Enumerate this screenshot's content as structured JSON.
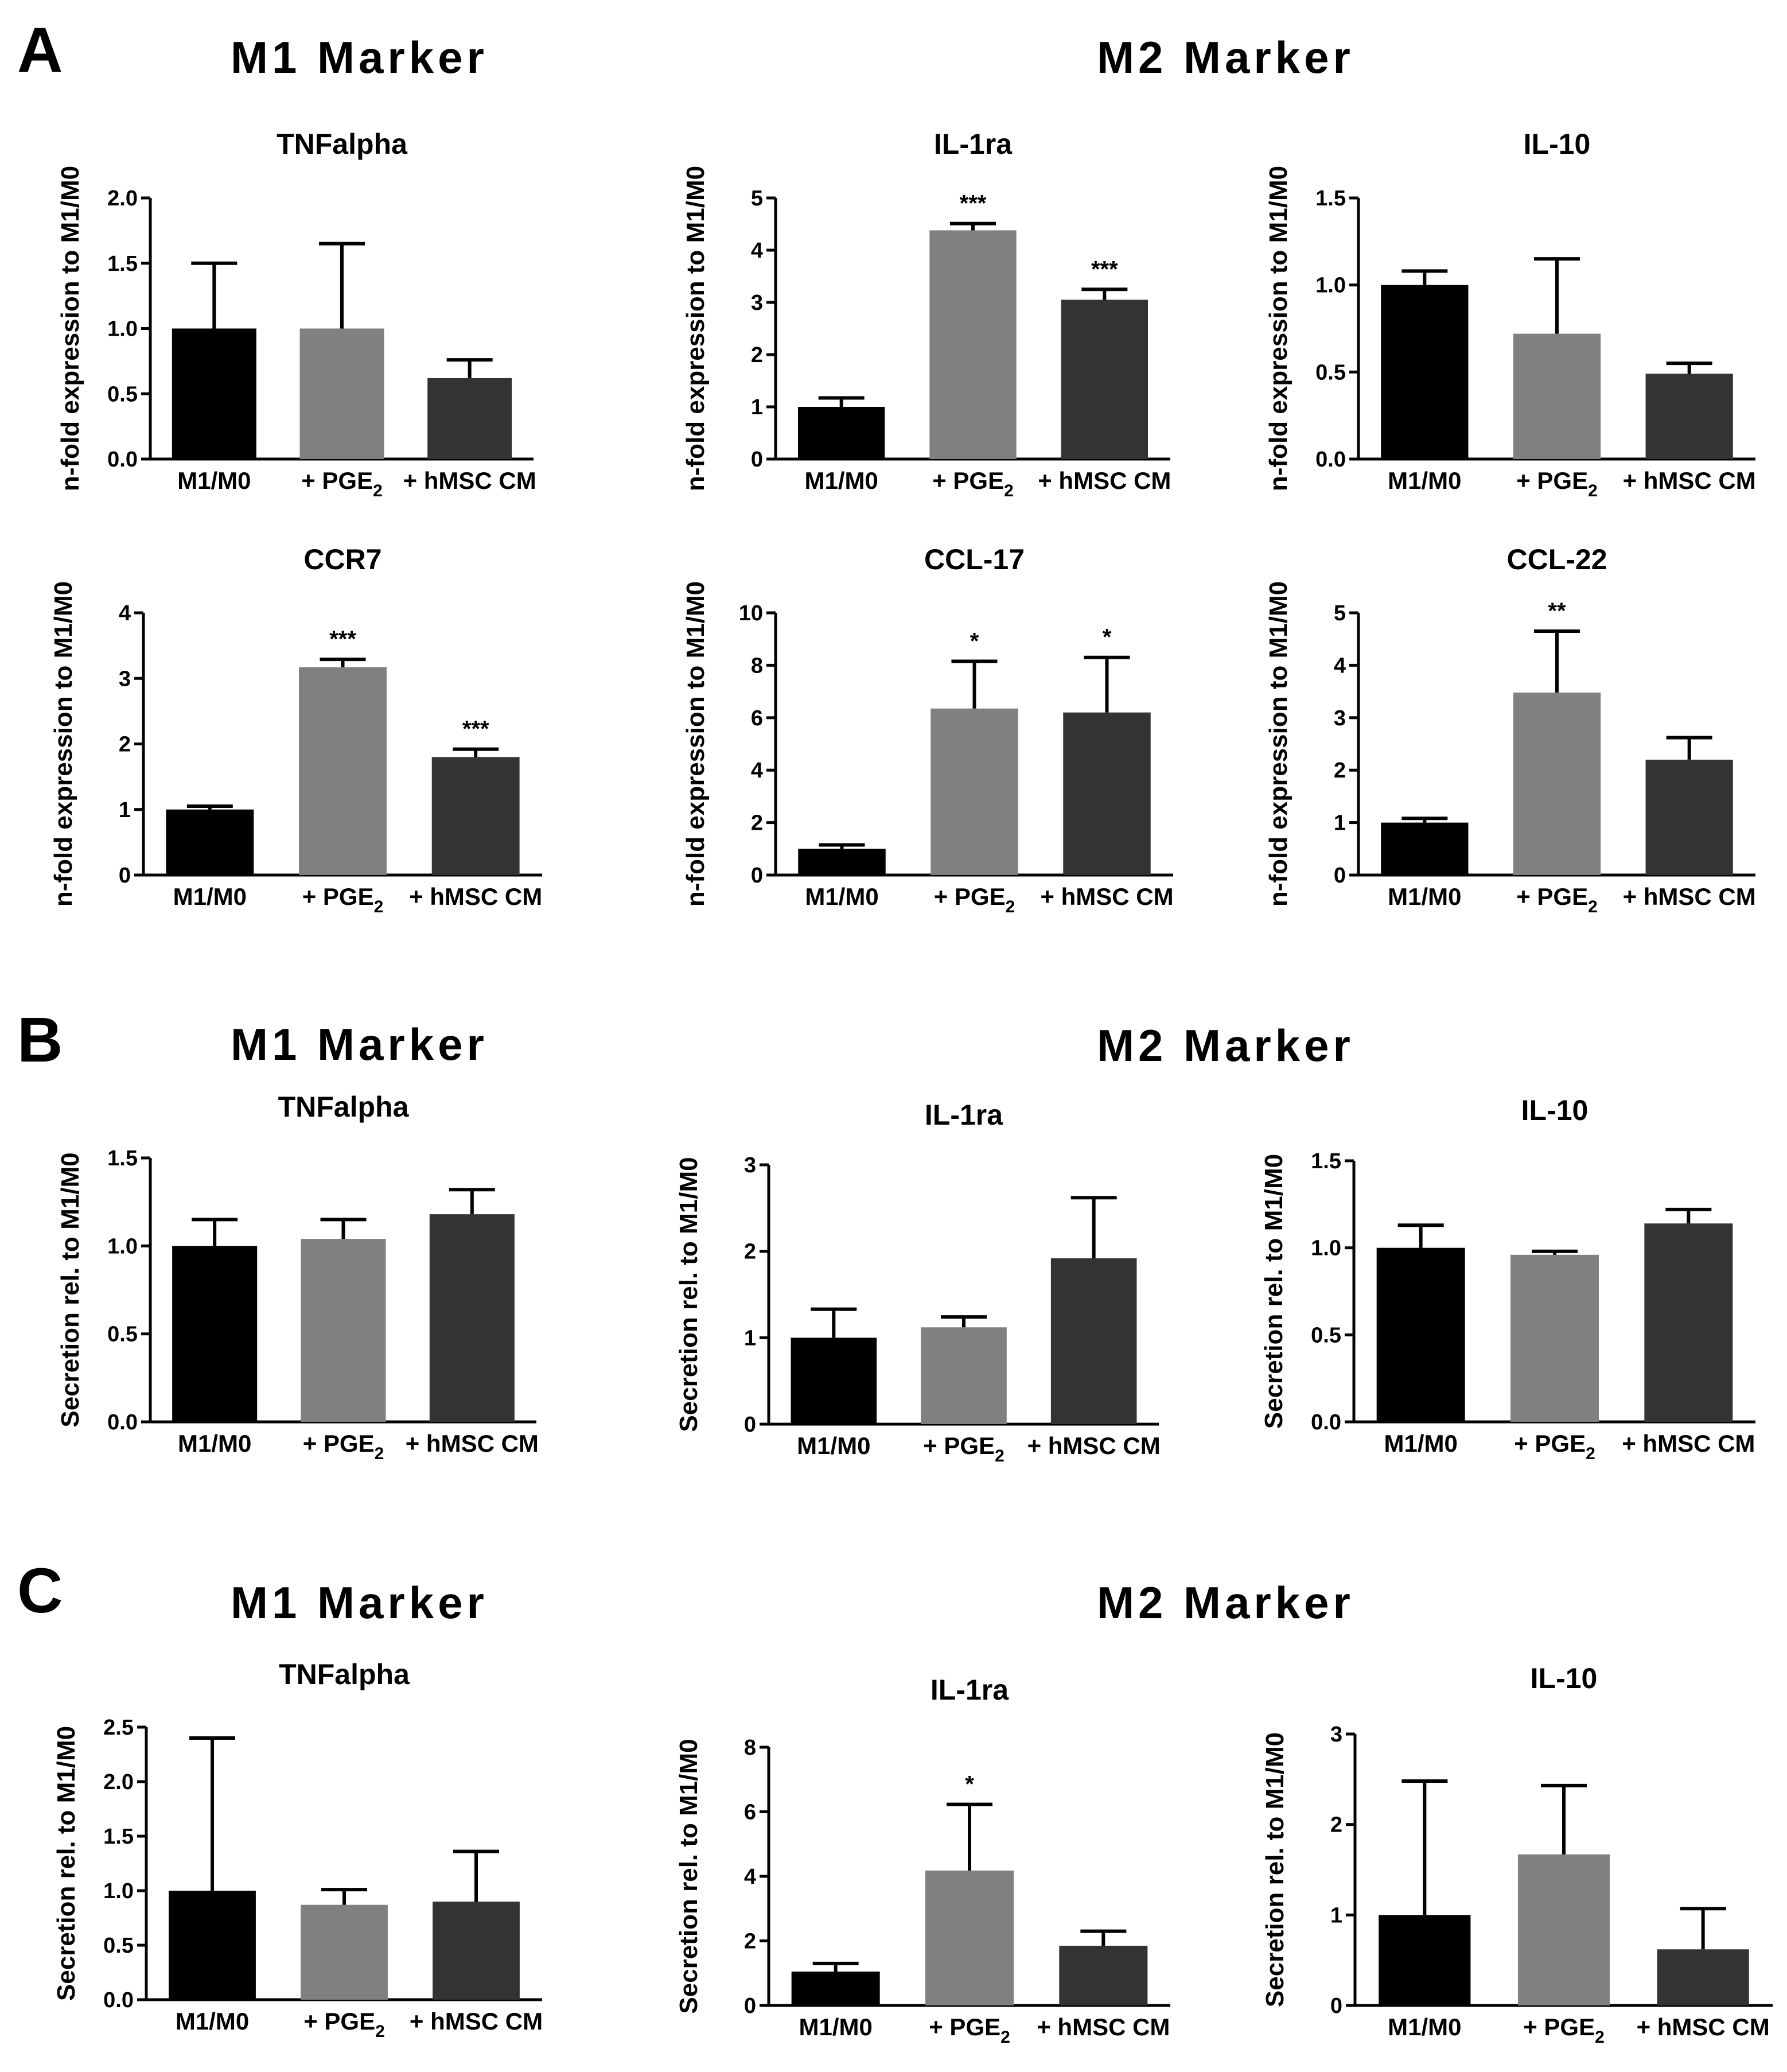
{
  "figure": {
    "panels": [
      {
        "letter": "A",
        "m1_heading": "M1  Marker",
        "m2_heading": "M2  Marker"
      },
      {
        "letter": "B",
        "m1_heading": "M1  Marker",
        "m2_heading": "M2  Marker"
      },
      {
        "letter": "C",
        "m1_heading": "M1  Marker",
        "m2_heading": "M2  Marker"
      }
    ],
    "categories": [
      "M1/M0",
      "+ PGE2",
      "+ hMSC CM"
    ],
    "bar_colors": [
      "#000000",
      "#808080",
      "#333333"
    ]
  },
  "chart_data": [
    {
      "panel": "A",
      "type": "bar",
      "title": "TNFalpha",
      "ylabel": "n-fold expression to M1/M0",
      "xlabel": "",
      "categories": [
        "M1/M0",
        "+ PGE2",
        "+ hMSC CM"
      ],
      "values": [
        1.0,
        1.0,
        0.62
      ],
      "errors": [
        0.5,
        0.65,
        0.14
      ],
      "ylim": [
        0,
        2
      ],
      "yticks": [
        "0.0",
        "0.5",
        "1.0",
        "1.5",
        "2.0"
      ],
      "significance": [
        "",
        "",
        ""
      ]
    },
    {
      "panel": "A",
      "type": "bar",
      "title": "IL-1ra",
      "ylabel": "n-fold expression to M1/M0",
      "xlabel": "",
      "categories": [
        "M1/M0",
        "+ PGE2",
        "+ hMSC CM"
      ],
      "values": [
        1.0,
        4.38,
        3.05
      ],
      "errors": [
        0.17,
        0.13,
        0.2
      ],
      "ylim": [
        0,
        5
      ],
      "yticks": [
        "0",
        "1",
        "2",
        "3",
        "4",
        "5"
      ],
      "significance": [
        "",
        "***",
        "***"
      ]
    },
    {
      "panel": "A",
      "type": "bar",
      "title": "IL-10",
      "ylabel": "n-fold expression to M1/M0",
      "xlabel": "",
      "categories": [
        "M1/M0",
        "+ PGE2",
        "+ hMSC CM"
      ],
      "values": [
        1.0,
        0.72,
        0.49
      ],
      "errors": [
        0.08,
        0.43,
        0.06
      ],
      "ylim": [
        0,
        1.5
      ],
      "yticks": [
        "0.0",
        "0.5",
        "1.0",
        "1.5"
      ],
      "significance": [
        "",
        "",
        ""
      ]
    },
    {
      "panel": "A",
      "type": "bar",
      "title": "CCR7",
      "ylabel": "n-fold expression to M1/M0",
      "xlabel": "",
      "categories": [
        "M1/M0",
        "+ PGE2",
        "+ hMSC CM"
      ],
      "values": [
        1.0,
        3.17,
        1.8
      ],
      "errors": [
        0.05,
        0.12,
        0.12
      ],
      "ylim": [
        0,
        4
      ],
      "yticks": [
        "0",
        "1",
        "2",
        "3",
        "4"
      ],
      "significance": [
        "",
        "***",
        "***"
      ]
    },
    {
      "panel": "A",
      "type": "bar",
      "title": "CCL-17",
      "ylabel": "n-fold expression to M1/M0",
      "xlabel": "",
      "categories": [
        "M1/M0",
        "+ PGE2",
        "+ hMSC CM"
      ],
      "values": [
        1.0,
        6.35,
        6.2
      ],
      "errors": [
        0.15,
        1.8,
        2.1
      ],
      "ylim": [
        0,
        10
      ],
      "yticks": [
        "0",
        "2",
        "4",
        "6",
        "8",
        "10"
      ],
      "significance": [
        "",
        "*",
        "*"
      ]
    },
    {
      "panel": "A",
      "type": "bar",
      "title": "CCL-22",
      "ylabel": "n-fold expression to M1/M0",
      "xlabel": "",
      "categories": [
        "M1/M0",
        "+ PGE2",
        "+ hMSC CM"
      ],
      "values": [
        1.0,
        3.48,
        2.2
      ],
      "errors": [
        0.08,
        1.17,
        0.42
      ],
      "ylim": [
        0,
        5
      ],
      "yticks": [
        "0",
        "1",
        "2",
        "3",
        "4",
        "5"
      ],
      "significance": [
        "",
        "**",
        ""
      ]
    },
    {
      "panel": "B",
      "type": "bar",
      "title": "TNFalpha",
      "ylabel": "Secretion rel. to M1/M0",
      "xlabel": "",
      "categories": [
        "M1/M0",
        "+ PGE2",
        "+ hMSC CM"
      ],
      "values": [
        1.0,
        1.04,
        1.18
      ],
      "errors": [
        0.15,
        0.11,
        0.14
      ],
      "ylim": [
        0,
        1.5
      ],
      "yticks": [
        "0.0",
        "0.5",
        "1.0",
        "1.5"
      ],
      "significance": [
        "",
        "",
        ""
      ]
    },
    {
      "panel": "B",
      "type": "bar",
      "title": "IL-1ra",
      "ylabel": "Secretion rel. to M1/M0",
      "xlabel": "",
      "categories": [
        "M1/M0",
        "+ PGE2",
        "+ hMSC CM"
      ],
      "values": [
        1.0,
        1.12,
        1.92
      ],
      "errors": [
        0.33,
        0.12,
        0.7
      ],
      "ylim": [
        0,
        3
      ],
      "yticks": [
        "0",
        "1",
        "2",
        "3"
      ],
      "significance": [
        "",
        "",
        ""
      ]
    },
    {
      "panel": "B",
      "type": "bar",
      "title": "IL-10",
      "ylabel": "Secretion rel. to M1/M0",
      "xlabel": "",
      "categories": [
        "M1/M0",
        "+ PGE2",
        "+ hMSC CM"
      ],
      "values": [
        1.0,
        0.96,
        1.14
      ],
      "errors": [
        0.13,
        0.02,
        0.08
      ],
      "ylim": [
        0,
        1.5
      ],
      "yticks": [
        "0.0",
        "0.5",
        "1.0",
        "1.5"
      ],
      "significance": [
        "",
        "",
        ""
      ]
    },
    {
      "panel": "C",
      "type": "bar",
      "title": "TNFalpha",
      "ylabel": "Secretion rel. to M1/M0",
      "xlabel": "",
      "categories": [
        "M1/M0",
        "+ PGE2",
        "+ hMSC CM"
      ],
      "values": [
        1.0,
        0.87,
        0.9
      ],
      "errors": [
        1.4,
        0.14,
        0.46
      ],
      "ylim": [
        0,
        2.5
      ],
      "yticks": [
        "0.0",
        "0.5",
        "1.0",
        "1.5",
        "2.0",
        "2.5"
      ],
      "significance": [
        "",
        "",
        ""
      ]
    },
    {
      "panel": "C",
      "type": "bar",
      "title": "IL-1ra",
      "ylabel": "Secretion rel. to M1/M0",
      "xlabel": "",
      "categories": [
        "M1/M0",
        "+ PGE2",
        "+ hMSC CM"
      ],
      "values": [
        1.05,
        4.18,
        1.85
      ],
      "errors": [
        0.25,
        2.05,
        0.45
      ],
      "ylim": [
        0,
        8
      ],
      "yticks": [
        "0",
        "2",
        "4",
        "6",
        "8"
      ],
      "significance": [
        "",
        "*",
        ""
      ]
    },
    {
      "panel": "C",
      "type": "bar",
      "title": "IL-10",
      "ylabel": "Secretion rel. to M1/M0",
      "xlabel": "",
      "categories": [
        "M1/M0",
        "+ PGE2",
        "+ hMSC CM"
      ],
      "values": [
        1.0,
        1.67,
        0.62
      ],
      "errors": [
        1.48,
        0.76,
        0.45
      ],
      "ylim": [
        0,
        3
      ],
      "yticks": [
        "0",
        "1",
        "2",
        "3"
      ],
      "significance": [
        "",
        "",
        ""
      ]
    }
  ]
}
